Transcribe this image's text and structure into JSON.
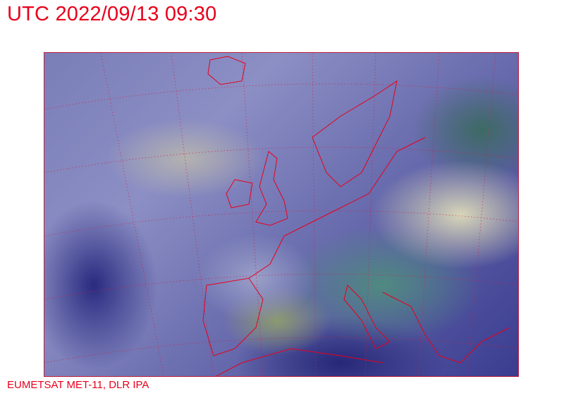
{
  "header": {
    "title": "UTC 2022/09/13 09:30"
  },
  "map": {
    "type": "satellite-image",
    "region": "Europe / North Atlantic",
    "overlay_color": "#e8001c",
    "grid": "dotted lat/lon graticule"
  },
  "footer": {
    "credit": "EUMETSAT MET-11, DLR IPA"
  }
}
